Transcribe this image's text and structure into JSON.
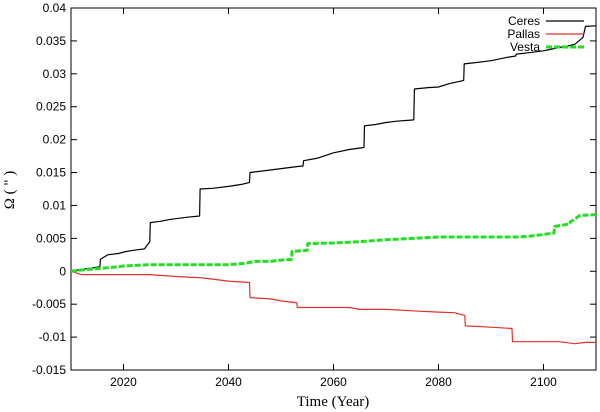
{
  "chart_data": {
    "type": "line",
    "xlabel": "Time (Year)",
    "ylabel": "Ω ( \" )",
    "xlim": [
      2010,
      2110
    ],
    "ylim": [
      -0.015,
      0.04
    ],
    "xticks": [
      2020,
      2040,
      2060,
      2080,
      2100
    ],
    "xtick_labels": [
      "2020",
      "2040",
      "2060",
      "2080",
      "2100"
    ],
    "yticks": [
      -0.015,
      -0.01,
      -0.005,
      0,
      0.005,
      0.01,
      0.015,
      0.02,
      0.025,
      0.03,
      0.035,
      0.04
    ],
    "ytick_labels": [
      "-0.015",
      "-0.01",
      "-0.005",
      "0",
      "0.005",
      "0.01",
      "0.015",
      "0.02",
      "0.025",
      "0.03",
      "0.035",
      "0.04"
    ],
    "grid": false,
    "legend_position": "top-right",
    "series": [
      {
        "name": "Ceres",
        "color": "#000000",
        "style": "solid",
        "x": [
          2010,
          2012,
          2014,
          2015.5,
          2015.6,
          2017,
          2019,
          2020.5,
          2022,
          2024,
          2025,
          2025.1,
          2027,
          2029,
          2032,
          2034.5,
          2034.6,
          2037,
          2040,
          2042.5,
          2044,
          2044.1,
          2047,
          2050,
          2053,
          2054.2,
          2054.3,
          2057,
          2060,
          2063,
          2065.8,
          2065.9,
          2068,
          2070,
          2072,
          2075.3,
          2075.4,
          2078,
          2080,
          2082,
          2084.8,
          2084.9,
          2087,
          2090,
          2093,
          2094.7,
          2094.8,
          2097,
          2100,
          2103,
          2105,
          2106,
          2107.5,
          2108,
          2110
        ],
        "y": [
          0,
          0.0003,
          0.0005,
          0.0007,
          0.0018,
          0.0025,
          0.0027,
          0.003,
          0.0032,
          0.0034,
          0.0045,
          0.0074,
          0.0076,
          0.0079,
          0.0082,
          0.0084,
          0.0125,
          0.0126,
          0.0129,
          0.0132,
          0.0135,
          0.015,
          0.0153,
          0.0156,
          0.0159,
          0.016,
          0.0168,
          0.0172,
          0.018,
          0.0185,
          0.0188,
          0.0221,
          0.0223,
          0.0226,
          0.0228,
          0.023,
          0.0277,
          0.0279,
          0.028,
          0.0285,
          0.029,
          0.0315,
          0.0317,
          0.032,
          0.0325,
          0.0327,
          0.033,
          0.0332,
          0.0335,
          0.034,
          0.0343,
          0.0345,
          0.0355,
          0.0372,
          0.0373
        ]
      },
      {
        "name": "Pallas",
        "color": "#e0302a",
        "style": "solid",
        "x": [
          2010,
          2012,
          2015,
          2020,
          2025,
          2030,
          2035,
          2040,
          2044,
          2044.1,
          2048,
          2050,
          2053,
          2053.1,
          2058,
          2063,
          2065,
          2070,
          2075,
          2080,
          2083,
          2085,
          2085.1,
          2090,
          2094,
          2094.1,
          2098,
          2103,
          2106,
          2108,
          2110
        ],
        "y": [
          0,
          -0.0005,
          -0.0005,
          -0.0005,
          -0.0005,
          -0.0008,
          -0.001,
          -0.0015,
          -0.0017,
          -0.004,
          -0.0042,
          -0.0045,
          -0.0048,
          -0.0055,
          -0.0055,
          -0.0055,
          -0.0058,
          -0.0058,
          -0.006,
          -0.0062,
          -0.0063,
          -0.0067,
          -0.0083,
          -0.0085,
          -0.0087,
          -0.0107,
          -0.0107,
          -0.0107,
          -0.011,
          -0.0108,
          -0.0108
        ]
      },
      {
        "name": "Vesta",
        "color": "#22dd22",
        "style": "dashed",
        "x": [
          2010,
          2012,
          2015,
          2018,
          2020,
          2025,
          2030,
          2035,
          2040,
          2043,
          2045,
          2048,
          2050,
          2052,
          2052.1,
          2055,
          2055.1,
          2060,
          2065,
          2070,
          2075,
          2080,
          2085,
          2090,
          2095,
          2097,
          2099,
          2101,
          2102,
          2102.1,
          2105,
          2105.1,
          2107,
          2110
        ],
        "y": [
          0,
          0.0002,
          0.0004,
          0.0006,
          0.0008,
          0.001,
          0.001,
          0.001,
          0.001,
          0.0012,
          0.0015,
          0.0015,
          0.0017,
          0.0018,
          0.003,
          0.0032,
          0.0042,
          0.0043,
          0.0045,
          0.0048,
          0.005,
          0.0052,
          0.0052,
          0.0052,
          0.0052,
          0.0053,
          0.0055,
          0.0057,
          0.0058,
          0.0068,
          0.0072,
          0.0075,
          0.0085,
          0.0086
        ]
      }
    ]
  }
}
